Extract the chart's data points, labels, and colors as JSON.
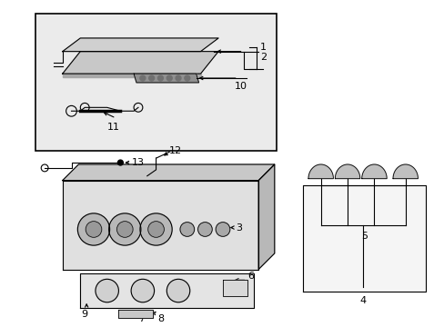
{
  "bg_color": "#ffffff",
  "line_color": "#000000",
  "fill_light": "#e8e8e8",
  "fill_mid": "#cccccc",
  "fill_dark": "#aaaaaa",
  "lw": 0.8
}
